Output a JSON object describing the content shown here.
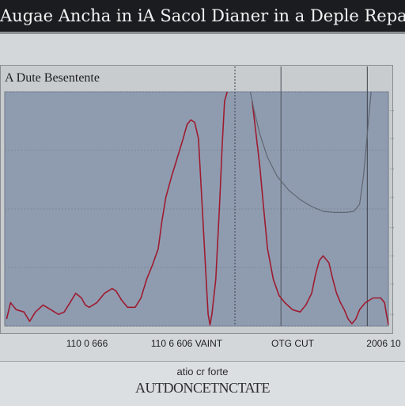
{
  "header": {
    "title": "Augae Ancha in iA Sacol Dianer in a Deple Repaci Aype"
  },
  "footer": {
    "line1": "atio cr forte",
    "line2": "AUTDONCETNCTATE"
  },
  "chart_data": {
    "type": "line",
    "title": "",
    "subtitle": "A Dute Besentente",
    "xlabel": "",
    "ylabel": "",
    "x_tick_labels": [
      "110 0 666",
      "110 6 606 VAINT",
      "OTG CUT",
      "2006 10"
    ],
    "xlim": [
      0,
      100
    ],
    "ylim": [
      0,
      100
    ],
    "grid": true,
    "series_colors": [
      "#9e1b2f",
      "#5f6670"
    ],
    "series": [
      {
        "values": [
          [
            0.5,
            3
          ],
          [
            1.5,
            10
          ],
          [
            3,
            7
          ],
          [
            5,
            6
          ],
          [
            6.5,
            2
          ],
          [
            8,
            6
          ],
          [
            10,
            9
          ],
          [
            12,
            7
          ],
          [
            14,
            5
          ],
          [
            15.5,
            6
          ],
          [
            17,
            10
          ],
          [
            18.5,
            14
          ],
          [
            20,
            12
          ],
          [
            21,
            9
          ],
          [
            22,
            8
          ],
          [
            24,
            10
          ],
          [
            26,
            14
          ],
          [
            28,
            16
          ],
          [
            29,
            15
          ],
          [
            30.5,
            11
          ],
          [
            32,
            8
          ],
          [
            34,
            8
          ],
          [
            35.5,
            12
          ],
          [
            37,
            20
          ],
          [
            38.5,
            26
          ],
          [
            40,
            33
          ],
          [
            41,
            45
          ],
          [
            42,
            55
          ],
          [
            43.5,
            64
          ],
          [
            45,
            72
          ],
          [
            46.5,
            80
          ],
          [
            47.5,
            86
          ],
          [
            48.5,
            88
          ],
          [
            49.5,
            87
          ],
          [
            50.5,
            80
          ],
          [
            51.5,
            50
          ],
          [
            52.5,
            20
          ],
          [
            53,
            5
          ],
          [
            53.5,
            0.5
          ],
          [
            54,
            5
          ],
          [
            55,
            20
          ],
          [
            56,
            52
          ],
          [
            56.7,
            78
          ],
          [
            57.3,
            96
          ],
          [
            58,
            100
          ]
        ]
      },
      {
        "values": [
          [
            64.5,
            96
          ],
          [
            65.5,
            82
          ],
          [
            66.5,
            68
          ],
          [
            67.5,
            50
          ],
          [
            68.5,
            33
          ],
          [
            70,
            20
          ],
          [
            71.5,
            13
          ],
          [
            73,
            10
          ],
          [
            75,
            7
          ],
          [
            77,
            6
          ],
          [
            78.5,
            9
          ],
          [
            80,
            14
          ],
          [
            81,
            22
          ],
          [
            82,
            28
          ],
          [
            83,
            30
          ],
          [
            84.5,
            27
          ],
          [
            85.5,
            20
          ],
          [
            86.5,
            14
          ],
          [
            87.5,
            10
          ],
          [
            88.5,
            7
          ],
          [
            89.5,
            3
          ],
          [
            90.5,
            1
          ],
          [
            91.5,
            3
          ],
          [
            92.5,
            7
          ],
          [
            94,
            10
          ],
          [
            96,
            12
          ],
          [
            98,
            12
          ],
          [
            99,
            10
          ],
          [
            99.5,
            5
          ],
          [
            100,
            0.5
          ]
        ]
      },
      {
        "values": [
          [
            64,
            100
          ],
          [
            65,
            92
          ],
          [
            66.5,
            82
          ],
          [
            68.5,
            72
          ],
          [
            71,
            64
          ],
          [
            74,
            58
          ],
          [
            77,
            54
          ],
          [
            80,
            51
          ],
          [
            83,
            49
          ],
          [
            86,
            48.5
          ],
          [
            89,
            48.5
          ],
          [
            91,
            49
          ],
          [
            92.5,
            52
          ],
          [
            93.5,
            64
          ],
          [
            94.5,
            82
          ],
          [
            95.5,
            100
          ]
        ]
      }
    ]
  }
}
